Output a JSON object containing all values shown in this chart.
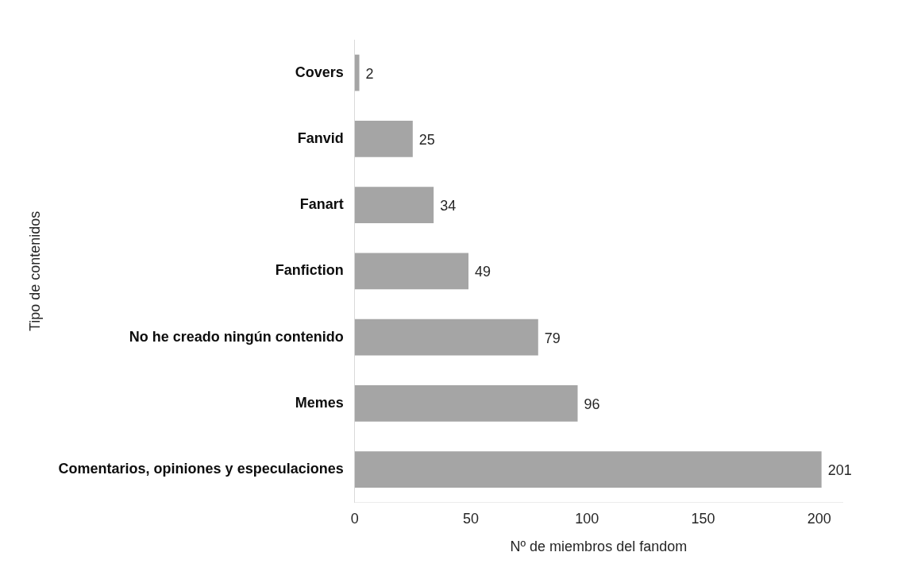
{
  "chart_data": {
    "type": "bar",
    "orientation": "horizontal",
    "categories": [
      "Covers",
      "Fanvid",
      "Fanart",
      "Fanfiction",
      "No he creado ningún contenido",
      "Memes",
      "Comentarios, opiniones y especulaciones"
    ],
    "values": [
      2,
      25,
      34,
      49,
      79,
      96,
      201
    ],
    "color": "#a5a5a5",
    "xlim": [
      0,
      210
    ],
    "xticks": [
      0,
      50,
      100,
      150,
      200
    ],
    "xlabel": "Nº de miembros del fandom",
    "ylabel": "Tipo de contenidos",
    "data_labels": true
  }
}
